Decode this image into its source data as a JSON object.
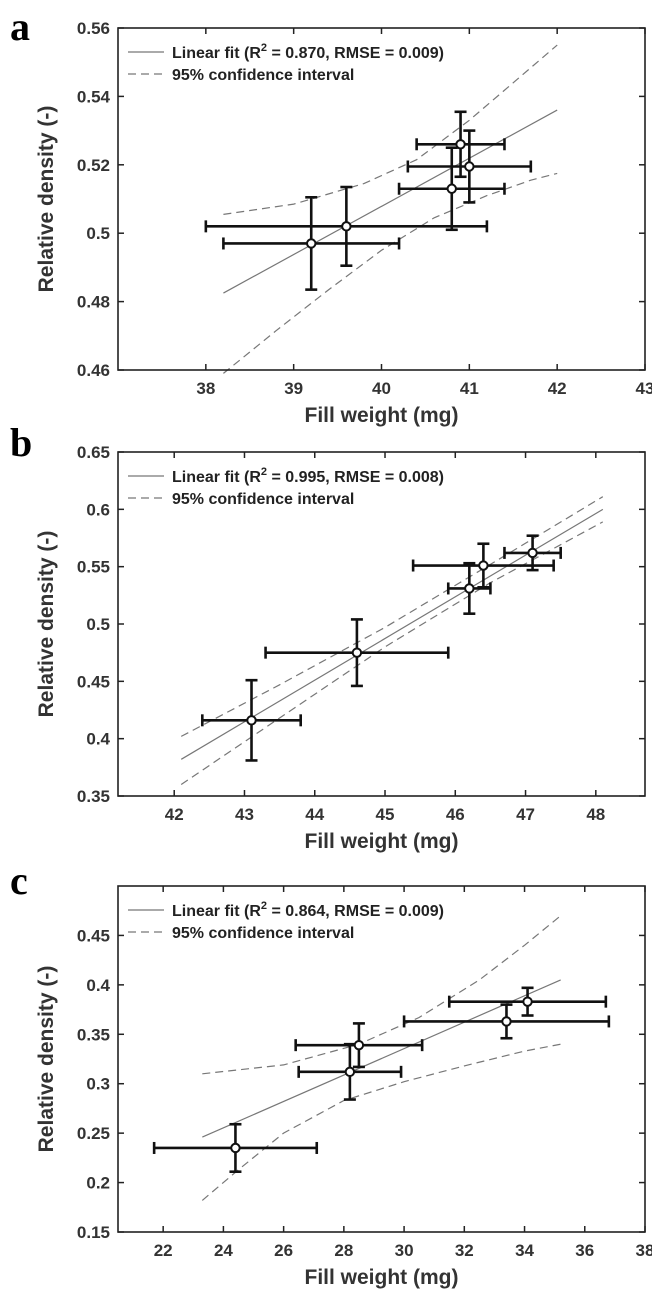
{
  "chart_data": [
    {
      "panel": "a",
      "type": "scatter",
      "xlabel": "Fill weight (mg)",
      "ylabel": "Relative density (-)",
      "xlim": [
        37,
        43
      ],
      "ylim": [
        0.46,
        0.56
      ],
      "xticks": [
        "38",
        "39",
        "40",
        "41",
        "42",
        "43"
      ],
      "yticks": [
        "0.46",
        "0.48",
        "0.5",
        "0.52",
        "0.54",
        "0.56"
      ],
      "legend": {
        "position": "top-left",
        "entries": [
          {
            "label": "Linear fit (R",
            "sup": "2",
            "label_end": " = 0.870, RMSE = 0.009)",
            "style": "solid"
          },
          {
            "label": "95% confidence interval",
            "style": "dashed"
          }
        ]
      },
      "points": [
        {
          "x": 39.2,
          "y": 0.497,
          "xerr": 1.0,
          "yerr": 0.0135
        },
        {
          "x": 39.6,
          "y": 0.502,
          "xerr": 1.6,
          "yerr": 0.0115
        },
        {
          "x": 40.8,
          "y": 0.513,
          "xerr": 0.6,
          "yerr": 0.012
        },
        {
          "x": 40.9,
          "y": 0.526,
          "xerr": 0.5,
          "yerr": 0.0095
        },
        {
          "x": 41.0,
          "y": 0.5195,
          "xerr": 0.7,
          "yerr": 0.0105
        }
      ],
      "fit": {
        "x": [
          38.2,
          42.0
        ],
        "y": [
          0.4825,
          0.536
        ]
      },
      "ci_upper": {
        "x": [
          38.2,
          39.0,
          39.8,
          40.4,
          41.0,
          41.5,
          42.0
        ],
        "y": [
          0.5055,
          0.5085,
          0.5145,
          0.5215,
          0.533,
          0.544,
          0.555
        ]
      },
      "ci_lower": {
        "x": [
          38.2,
          38.8,
          39.4,
          40.0,
          40.6,
          41.2,
          41.7,
          42.0
        ],
        "y": [
          0.459,
          0.4715,
          0.4835,
          0.495,
          0.5045,
          0.511,
          0.5155,
          0.5175
        ]
      }
    },
    {
      "panel": "b",
      "type": "scatter",
      "xlabel": "Fill weight (mg)",
      "ylabel": "Relative density (-)",
      "xlim": [
        41.2,
        48.7
      ],
      "ylim": [
        0.35,
        0.65
      ],
      "xticks": [
        "42",
        "43",
        "44",
        "45",
        "46",
        "47",
        "48"
      ],
      "yticks": [
        "0.35",
        "0.4",
        "0.45",
        "0.5",
        "0.55",
        "0.6",
        "0.65"
      ],
      "legend": {
        "position": "top-left",
        "entries": [
          {
            "label": "Linear fit (R",
            "sup": "2",
            "label_end": " = 0.995, RMSE = 0.008)",
            "style": "solid"
          },
          {
            "label": "95% confidence interval",
            "style": "dashed"
          }
        ]
      },
      "points": [
        {
          "x": 43.1,
          "y": 0.416,
          "xerr": 0.7,
          "yerr": 0.035
        },
        {
          "x": 44.6,
          "y": 0.475,
          "xerr": 1.3,
          "yerr": 0.029
        },
        {
          "x": 46.2,
          "y": 0.531,
          "xerr": 0.3,
          "yerr": 0.022
        },
        {
          "x": 46.4,
          "y": 0.551,
          "xerr": 1.0,
          "yerr": 0.019
        },
        {
          "x": 47.1,
          "y": 0.562,
          "xerr": 0.4,
          "yerr": 0.015
        }
      ],
      "fit": {
        "x": [
          42.1,
          48.1
        ],
        "y": [
          0.382,
          0.6
        ]
      },
      "ci_upper": {
        "x": [
          42.1,
          43.5,
          45.0,
          46.5,
          48.1
        ],
        "y": [
          0.402,
          0.447,
          0.497,
          0.552,
          0.611
        ]
      },
      "ci_lower": {
        "x": [
          42.1,
          43.5,
          45.0,
          46.5,
          48.1
        ],
        "y": [
          0.36,
          0.418,
          0.48,
          0.536,
          0.589
        ]
      }
    },
    {
      "panel": "c",
      "type": "scatter",
      "xlabel": "Fill weight (mg)",
      "ylabel": "Relative density (-)",
      "xlim": [
        20.5,
        38
      ],
      "ylim": [
        0.15,
        0.5
      ],
      "xticks": [
        "22",
        "24",
        "26",
        "28",
        "30",
        "32",
        "34",
        "36",
        "38"
      ],
      "yticks": [
        "0.15",
        "0.2",
        "0.25",
        "0.3",
        "0.35",
        "0.4",
        "0.45"
      ],
      "legend": {
        "position": "top-left",
        "entries": [
          {
            "label": "Linear fit (R",
            "sup": "2",
            "label_end": " = 0.864, RMSE = 0.009)",
            "style": "solid"
          },
          {
            "label": "95% confidence interval",
            "style": "dashed"
          }
        ]
      },
      "points": [
        {
          "x": 24.4,
          "y": 0.235,
          "xerr": 2.7,
          "yerr": 0.024
        },
        {
          "x": 28.2,
          "y": 0.312,
          "xerr": 1.7,
          "yerr": 0.028
        },
        {
          "x": 28.5,
          "y": 0.339,
          "xerr": 2.1,
          "yerr": 0.022
        },
        {
          "x": 33.4,
          "y": 0.363,
          "xerr": 3.4,
          "yerr": 0.017
        },
        {
          "x": 34.1,
          "y": 0.383,
          "xerr": 2.6,
          "yerr": 0.014
        }
      ],
      "fit": {
        "x": [
          23.3,
          35.2
        ],
        "y": [
          0.246,
          0.405
        ]
      },
      "ci_upper": {
        "x": [
          23.3,
          26.0,
          28.5,
          30.5,
          32.5,
          34.0,
          35.2
        ],
        "y": [
          0.31,
          0.319,
          0.34,
          0.367,
          0.405,
          0.44,
          0.47
        ]
      },
      "ci_lower": {
        "x": [
          23.3,
          24.5,
          26.0,
          28.0,
          30.0,
          32.0,
          34.0,
          35.2
        ],
        "y": [
          0.182,
          0.213,
          0.25,
          0.283,
          0.302,
          0.318,
          0.333,
          0.34
        ]
      }
    }
  ]
}
